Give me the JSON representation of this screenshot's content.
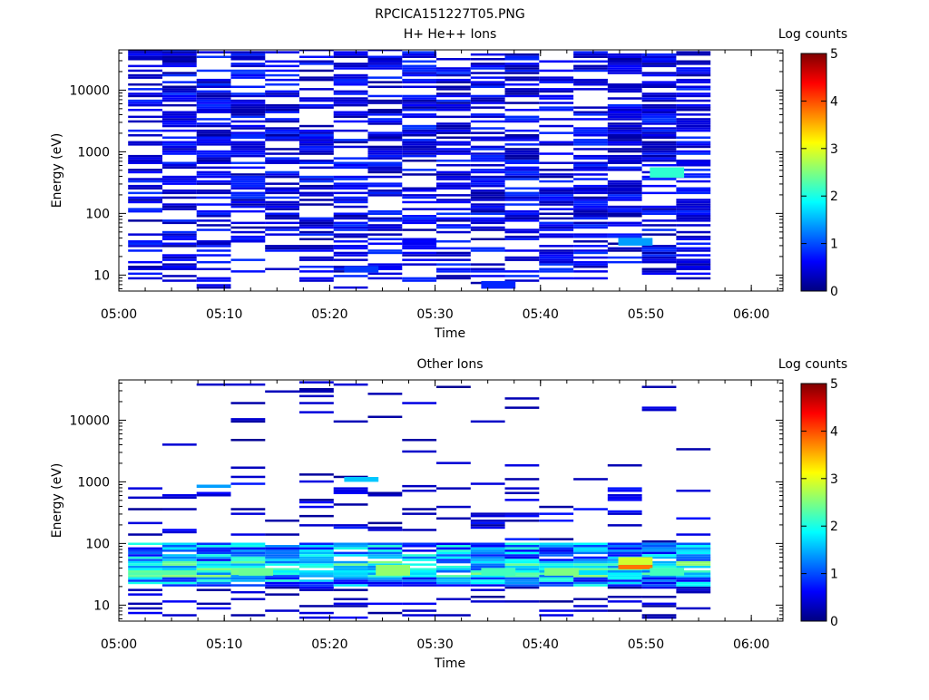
{
  "figure_title": "RPCICA151227T05.PNG",
  "colorscale": [
    "#00007f",
    "#0000ff",
    "#007fff",
    "#00ffff",
    "#7fff7f",
    "#ffff00",
    "#ff7f00",
    "#ff0000",
    "#7f0000"
  ],
  "chart_data": [
    {
      "type": "heatmap",
      "title": "H+ He++ Ions",
      "xlabel": "Time",
      "ylabel": "Energy (eV)",
      "y_scale": "log",
      "x_ticks": [
        "05:00",
        "05:10",
        "05:20",
        "05:30",
        "05:40",
        "05:50",
        "06:00"
      ],
      "y_ticks": [
        "10",
        "100",
        "1000",
        "10000"
      ],
      "xlim": [
        "05:00",
        "06:03"
      ],
      "ylim": [
        5.5,
        45000
      ],
      "colorbar": {
        "label": "Log counts",
        "ticks": [
          "0",
          "1",
          "2",
          "3",
          "4",
          "5"
        ],
        "range": [
          0,
          5
        ]
      },
      "time_bins": [
        "05:02:30",
        "05:05:45",
        "05:09:00",
        "05:12:15",
        "05:15:30",
        "05:18:45",
        "05:22:00",
        "05:25:15",
        "05:28:30",
        "05:31:45",
        "05:35:00",
        "05:38:15",
        "05:41:30",
        "05:44:45",
        "05:48:00",
        "05:51:15",
        "05:54:30"
      ],
      "coverage": "most energy channels 10 eV - 40000 eV filled with low values (0.2-1.0 log counts); isolated enhancements",
      "cells": [
        {
          "t": "05:52",
          "e_min": 380,
          "e_max": 560,
          "v": 2.1
        },
        {
          "t": "05:49",
          "e_min": 30,
          "e_max": 40,
          "v": 1.4
        },
        {
          "t": "05:36",
          "e_min": 6,
          "e_max": 8,
          "v": 0.8
        },
        {
          "t": "05:23",
          "e_min": 11,
          "e_max": 14,
          "v": 0.9
        }
      ]
    },
    {
      "type": "heatmap",
      "title": "Other Ions",
      "xlabel": "Time",
      "ylabel": "Energy (eV)",
      "y_scale": "log",
      "x_ticks": [
        "05:00",
        "05:10",
        "05:20",
        "05:30",
        "05:40",
        "05:50",
        "06:00"
      ],
      "y_ticks": [
        "10",
        "100",
        "1000",
        "10000"
      ],
      "xlim": [
        "05:00",
        "06:03"
      ],
      "ylim": [
        5.5,
        45000
      ],
      "colorbar": {
        "label": "Log counts",
        "ticks": [
          "0",
          "1",
          "2",
          "3",
          "4",
          "5"
        ],
        "range": [
          0,
          5
        ]
      },
      "time_bins": [
        "05:02:30",
        "05:05:45",
        "05:09:00",
        "05:12:15",
        "05:15:30",
        "05:18:45",
        "05:22:00",
        "05:25:15",
        "05:28:30",
        "05:31:45",
        "05:35:00",
        "05:38:15",
        "05:41:30",
        "05:44:45",
        "05:48:00",
        "05:51:15",
        "05:54:30"
      ],
      "coverage": "sparse lines above 100 eV; dense band 20-100 eV with peak near 30-45 eV",
      "cells": [
        {
          "t": "05:49",
          "e_min": 38,
          "e_max": 45,
          "v": 3.8
        },
        {
          "t": "05:49",
          "e_min": 45,
          "e_max": 60,
          "v": 2.9
        },
        {
          "t": "05:26",
          "e_min": 30,
          "e_max": 45,
          "v": 2.6
        },
        {
          "t": "05:42",
          "e_min": 30,
          "e_max": 40,
          "v": 2.5
        },
        {
          "t": "05:13",
          "e_min": 30,
          "e_max": 40,
          "v": 2.4
        },
        {
          "t": "05:52",
          "e_min": 30,
          "e_max": 40,
          "v": 2.2
        },
        {
          "t": "05:36",
          "e_min": 30,
          "e_max": 40,
          "v": 2.2
        },
        {
          "t": "05:23",
          "e_min": 1000,
          "e_max": 1200,
          "v": 1.6
        },
        {
          "t": "05:09",
          "e_min": 800,
          "e_max": 900,
          "v": 1.4
        }
      ]
    }
  ]
}
